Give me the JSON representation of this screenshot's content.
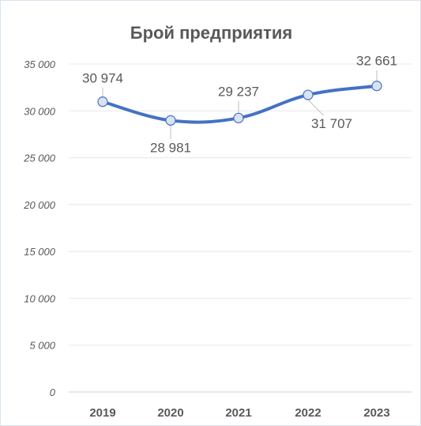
{
  "chart_data": {
    "type": "line",
    "title": "Брой предприятия",
    "categories": [
      "2019",
      "2020",
      "2021",
      "2022",
      "2023"
    ],
    "series": [
      {
        "values": [
          30974,
          28981,
          29237,
          31707,
          32661
        ],
        "data_labels": [
          "30 974",
          "28 981",
          "29 237",
          "31 707",
          "32 661"
        ]
      }
    ],
    "y_ticks": [
      {
        "value": 0,
        "label": "0"
      },
      {
        "value": 5000,
        "label": "5 000"
      },
      {
        "value": 10000,
        "label": "10 000"
      },
      {
        "value": 15000,
        "label": "15 000"
      },
      {
        "value": 20000,
        "label": "20 000"
      },
      {
        "value": 25000,
        "label": "25 000"
      },
      {
        "value": 30000,
        "label": "30 000"
      },
      {
        "value": 35000,
        "label": "35 000"
      }
    ],
    "ylim": [
      0,
      35000
    ],
    "grid": true,
    "smooth": true,
    "colors": {
      "line": "#4472c4",
      "marker_fill": "#dae3f3",
      "grid": "#e8e8e8",
      "text": "#595959"
    }
  }
}
